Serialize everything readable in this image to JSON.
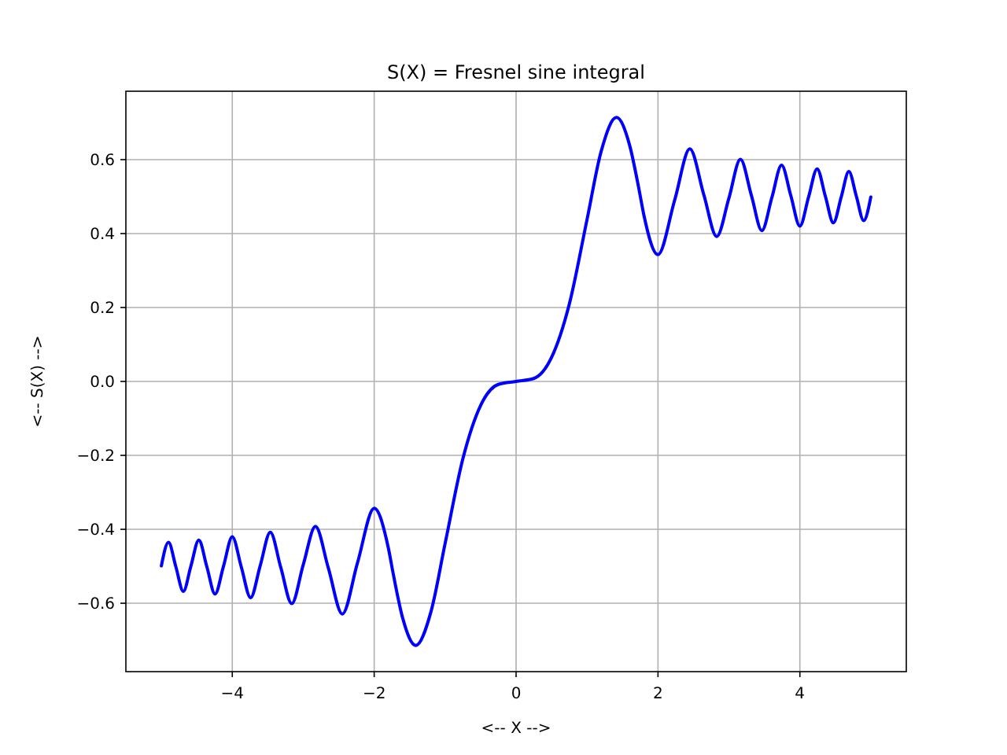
{
  "chart_data": {
    "type": "line",
    "title": "S(X) = Fresnel sine integral",
    "xlabel": "<-- X -->",
    "ylabel": "<-- S(X) -->",
    "xlim": [
      -5.5,
      5.5
    ],
    "ylim": [
      -0.785,
      0.785
    ],
    "xticks": [
      {
        "value": -4,
        "label": "−4"
      },
      {
        "value": -2,
        "label": "−2"
      },
      0,
      2,
      4
    ],
    "yticks": [
      {
        "value": -0.6,
        "label": "−0.6"
      },
      {
        "value": -0.4,
        "label": "−0.4"
      },
      {
        "value": -0.2,
        "label": "−0.2"
      },
      {
        "value": 0,
        "label": "0.0"
      },
      {
        "value": 0.2,
        "label": "0.2"
      },
      {
        "value": 0.4,
        "label": "0.4"
      },
      {
        "value": 0.6,
        "label": "0.6"
      }
    ],
    "grid": true,
    "line_style": "solid",
    "marker": "none",
    "series": [
      {
        "color": "#0000ff",
        "x": [
          -5,
          -4.899,
          -4.796,
          -4.69,
          -4.583,
          -4.472,
          -4.359,
          -4.243,
          -4.123,
          -4,
          -3.873,
          -3.742,
          -3.606,
          -3.464,
          -3.317,
          -3.162,
          -3,
          -2.828,
          -2.646,
          -2.449,
          -2.236,
          -2,
          -1.8,
          -1.732,
          -1.6,
          -1.414,
          -1.2,
          -1,
          -0.75,
          -0.5,
          -0.25,
          0,
          0.25,
          0.5,
          0.75,
          1,
          1.2,
          1.414,
          1.6,
          1.732,
          1.8,
          2,
          2.236,
          2.449,
          2.646,
          2.828,
          3,
          3.162,
          3.317,
          3.464,
          3.606,
          3.742,
          3.873,
          4,
          4.123,
          4.243,
          4.359,
          4.472,
          4.583,
          4.69,
          4.796,
          4.899,
          5
        ],
        "values": [
          -0.499,
          -0.435,
          -0.501,
          -0.568,
          -0.499,
          -0.429,
          -0.501,
          -0.575,
          -0.499,
          -0.42,
          -0.502,
          -0.585,
          -0.498,
          -0.408,
          -0.503,
          -0.601,
          -0.496,
          -0.392,
          -0.505,
          -0.629,
          -0.491,
          -0.343,
          -0.451,
          -0.52,
          -0.639,
          -0.714,
          -0.623,
          -0.438,
          -0.209,
          -0.065,
          -0.008,
          0,
          0.008,
          0.065,
          0.209,
          0.438,
          0.623,
          0.714,
          0.639,
          0.52,
          0.451,
          0.343,
          0.491,
          0.629,
          0.505,
          0.392,
          0.496,
          0.601,
          0.503,
          0.408,
          0.498,
          0.585,
          0.502,
          0.42,
          0.499,
          0.575,
          0.501,
          0.429,
          0.499,
          0.568,
          0.501,
          0.435,
          0.499
        ]
      }
    ]
  }
}
